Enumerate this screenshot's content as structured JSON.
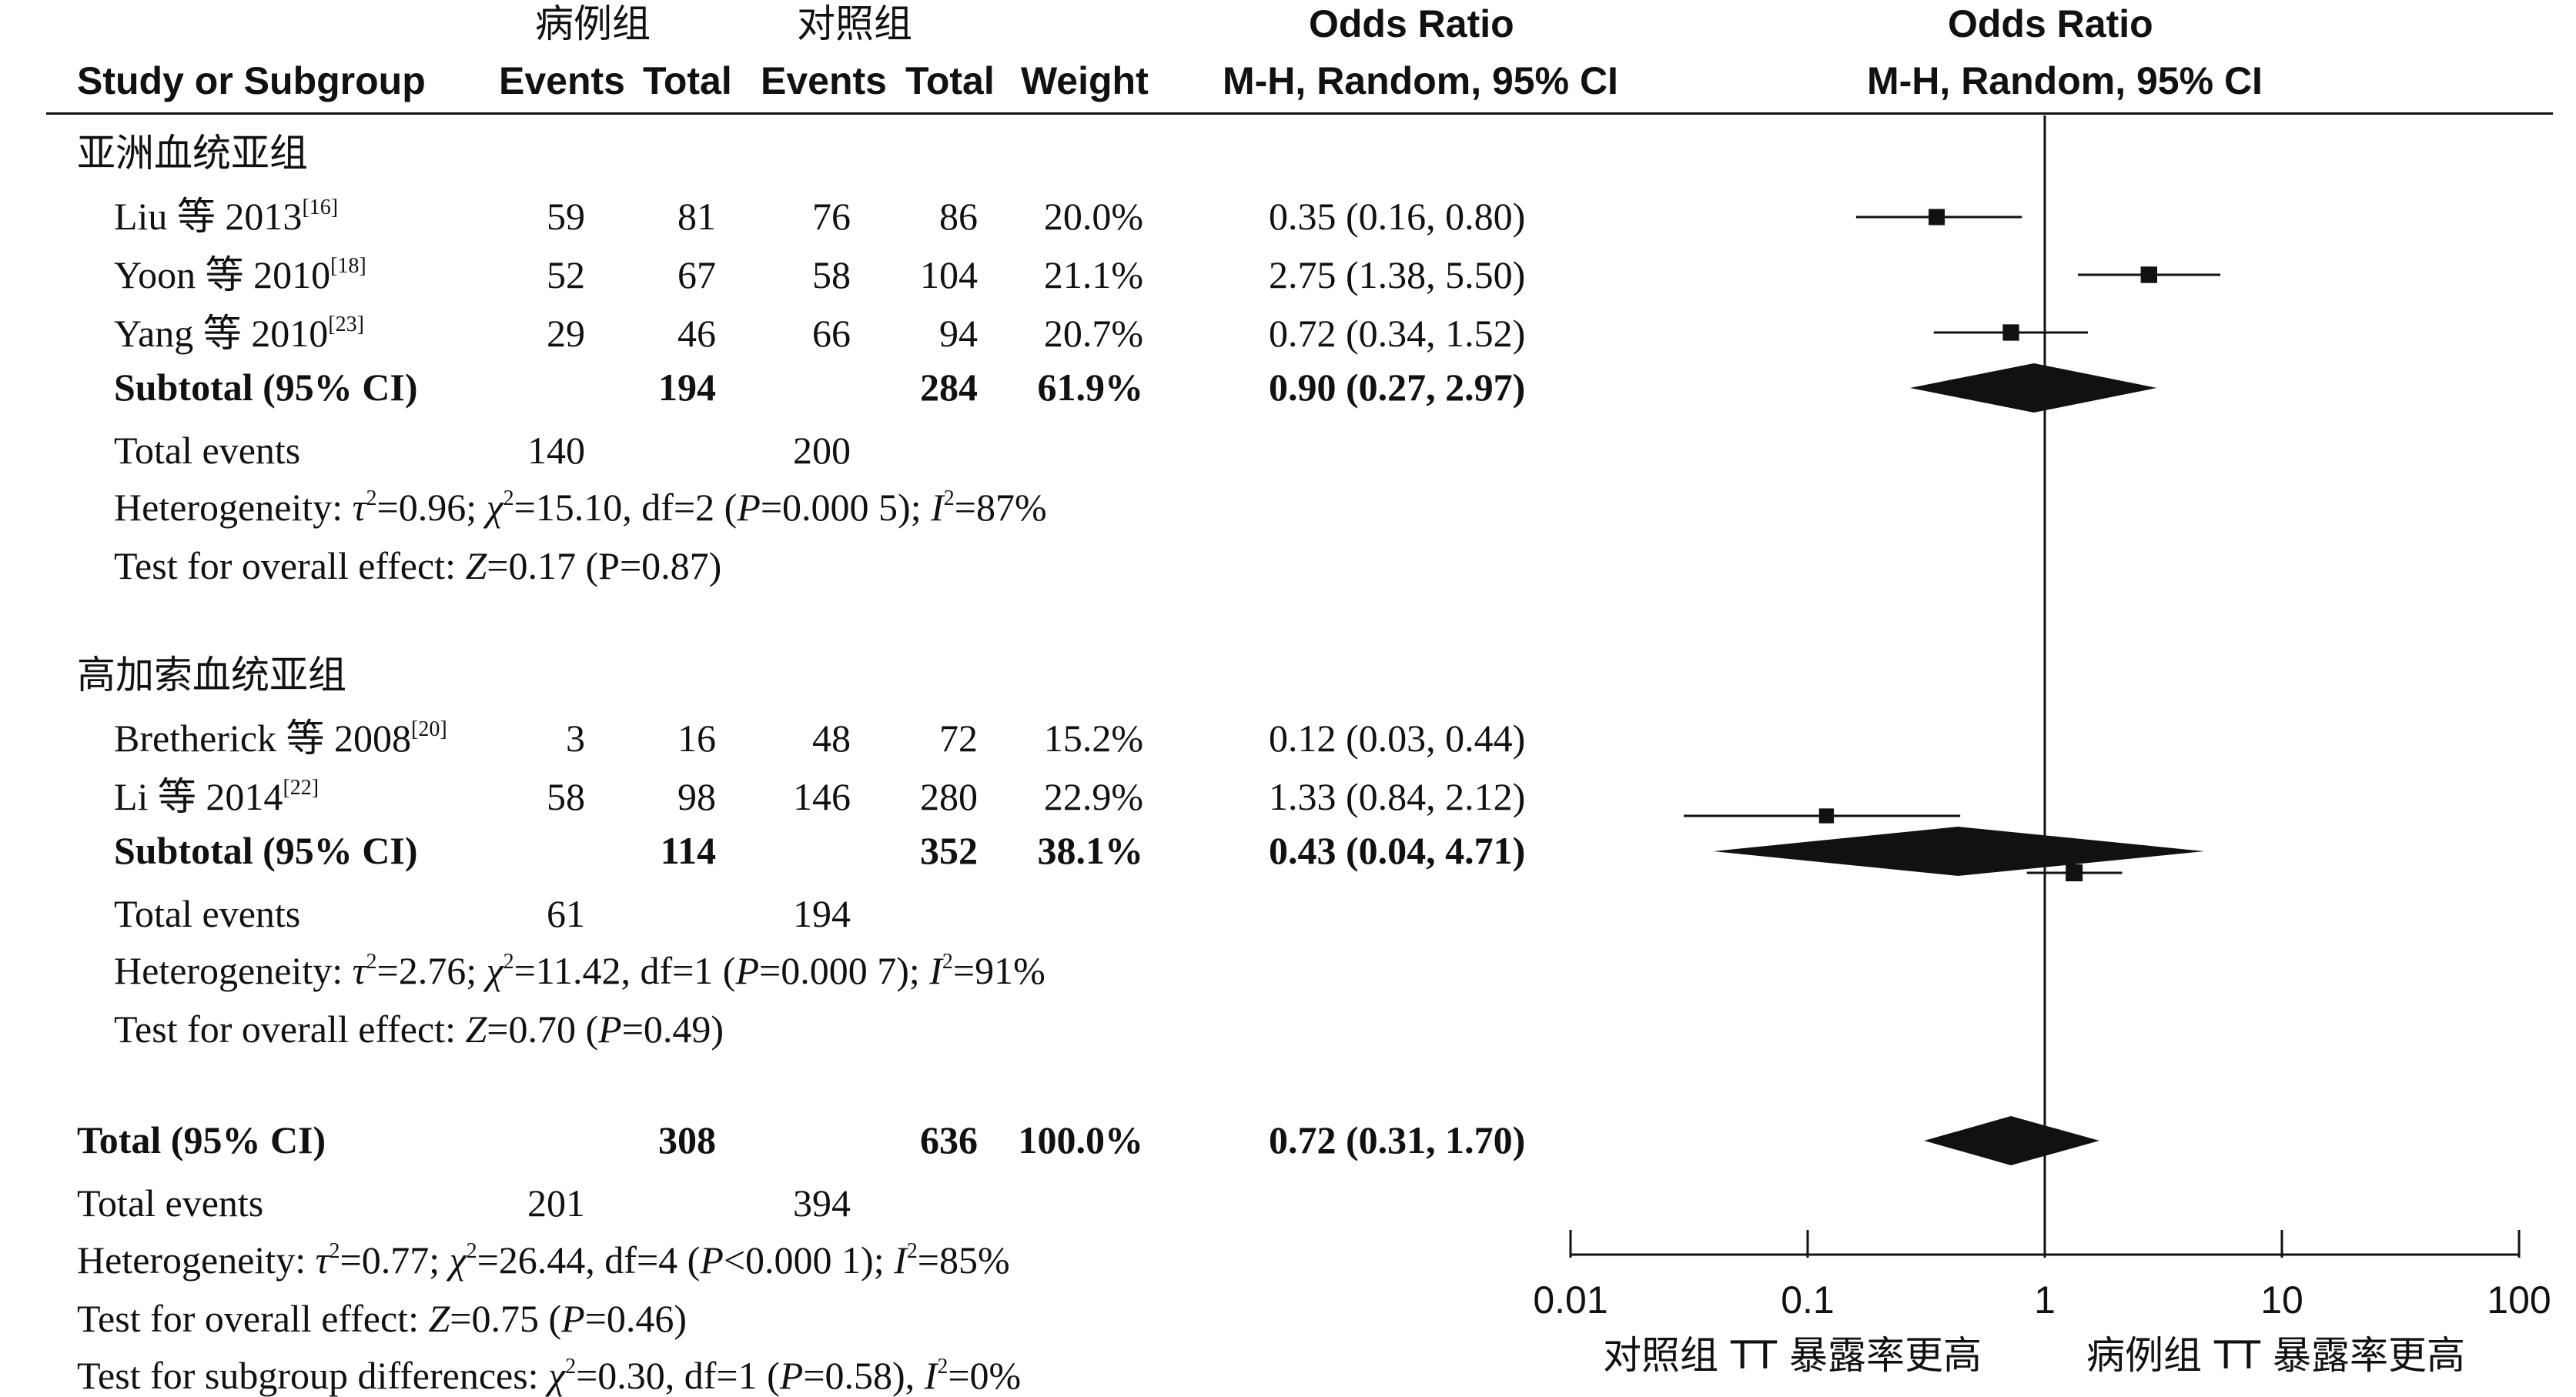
{
  "header": {
    "case_group": "病例组",
    "control_group": "对照组",
    "study_col": "Study or Subgroup",
    "events1": "Events",
    "total1": "Total",
    "events2": "Events",
    "total2": "Total",
    "weight": "Weight",
    "or_title": "Odds Ratio",
    "or_method": "M-H, Random, 95% CI",
    "plot_title": "Odds Ratio",
    "plot_method": "M-H, Random, 95% CI"
  },
  "subgroups": [
    {
      "name": "亚洲血统亚组",
      "studies": [
        {
          "name": "Liu 等 2013",
          "ref": "[16]",
          "e1": "59",
          "t1": "81",
          "e2": "76",
          "t2": "86",
          "weight": "20.0%",
          "ci": "0.35 (0.16, 0.80)"
        },
        {
          "name": "Yoon 等 2010",
          "ref": "[18]",
          "e1": "52",
          "t1": "67",
          "e2": "58",
          "t2": "104",
          "weight": "21.1%",
          "ci": "2.75 (1.38, 5.50)"
        },
        {
          "name": "Yang 等 2010",
          "ref": "[23]",
          "e1": "29",
          "t1": "46",
          "e2": "66",
          "t2": "94",
          "weight": "20.7%",
          "ci": "0.72 (0.34, 1.52)"
        }
      ],
      "subtotal": {
        "label": "Subtotal (95% CI)",
        "t1": "194",
        "t2": "284",
        "weight": "61.9%",
        "ci": "0.90 (0.27, 2.97)"
      },
      "events": {
        "label": "Total events",
        "e1": "140",
        "e2": "200"
      },
      "het": {
        "prefix": "Heterogeneity: ",
        "tau": "τ",
        "tau_val": "=0.96; ",
        "chi": "χ",
        "chi_val": "=15.10, df=2 (",
        "p": "P",
        "p_val": "=0.000 5); ",
        "i": "I",
        "i_val": "=87%"
      },
      "effect": {
        "prefix": "Test for overall effect: ",
        "z": "Z",
        "z_val": "=0.17 (P=0.87)"
      }
    },
    {
      "name": "高加索血统亚组",
      "studies": [
        {
          "name": "Bretherick 等 2008",
          "ref": "[20]",
          "e1": "3",
          "t1": "16",
          "e2": "48",
          "t2": "72",
          "weight": "15.2%",
          "ci": "0.12 (0.03, 0.44)"
        },
        {
          "name": "Li 等 2014",
          "ref": "[22]",
          "e1": "58",
          "t1": "98",
          "e2": "146",
          "t2": "280",
          "weight": "22.9%",
          "ci": "1.33 (0.84, 2.12)"
        }
      ],
      "subtotal": {
        "label": "Subtotal (95% CI)",
        "t1": "114",
        "t2": "352",
        "weight": "38.1%",
        "ci": "0.43 (0.04, 4.71)"
      },
      "events": {
        "label": "Total events",
        "e1": "61",
        "e2": "194"
      },
      "het": {
        "prefix": "Heterogeneity: ",
        "tau": "τ",
        "tau_val": "=2.76; ",
        "chi": "χ",
        "chi_val": "=11.42, df=1 (",
        "p": "P",
        "p_val": "=0.000 7); ",
        "i": "I",
        "i_val": "=91%"
      },
      "effect": {
        "prefix": "Test for overall effect: ",
        "z": "Z",
        "z_val": "=0.70 (",
        "p": "P",
        "p_val": "=0.49)"
      }
    }
  ],
  "total": {
    "label": "Total (95% CI)",
    "t1": "308",
    "t2": "636",
    "weight": "100.0%",
    "ci": "0.72 (0.31, 1.70)"
  },
  "total_events": {
    "label": "Total events",
    "e1": "201",
    "e2": "394"
  },
  "total_het": {
    "prefix": "Heterogeneity: ",
    "tau": "τ",
    "tau_val": "=0.77; ",
    "chi": "χ",
    "chi_val": "=26.44, df=4 (",
    "p": "P",
    "p_val": "<0.000 1); ",
    "i": "I",
    "i_val": "=85%"
  },
  "total_effect": {
    "prefix": "Test for overall effect: ",
    "z": "Z",
    "z_val": "=0.75 (",
    "p": "P",
    "p_val": "=0.46)"
  },
  "subgroup_diff": {
    "prefix": "Test for subgroup differences: ",
    "chi": "χ",
    "chi_val": "=0.30, df=1 (",
    "p": "P",
    "p_val": "=0.58), ",
    "i": "I",
    "i_val": "=0%"
  },
  "axis": {
    "ticks": [
      "0.01",
      "0.1",
      "1",
      "10",
      "100"
    ],
    "left_caption": "对照组 TT 暴露率更高",
    "right_caption": "病例组 TT 暴露率更高"
  },
  "chart_data": {
    "type": "scatter",
    "title": "Odds Ratio",
    "subtitle": "M-H, Random, 95% CI",
    "xscale": "log",
    "xlim": [
      0.01,
      100
    ],
    "reference_line": 1,
    "series": [
      {
        "name": "",
        "points": [
          {
            "label": "Liu 等 2013",
            "or": 0.35,
            "lo": 0.16,
            "hi": 0.8,
            "weight": 20.0
          },
          {
            "label": "Yoon 等 2010",
            "or": 2.75,
            "lo": 1.38,
            "hi": 5.5,
            "weight": 21.1
          },
          {
            "label": "Yang 等 2010",
            "or": 0.72,
            "lo": 0.34,
            "hi": 1.52,
            "weight": 20.7
          },
          {
            "label": "Bretherick 等 2008",
            "or": 0.12,
            "lo": 0.03,
            "hi": 0.44,
            "weight": 15.2
          },
          {
            "label": "Li 等 2014",
            "or": 1.33,
            "lo": 0.84,
            "hi": 2.12,
            "weight": 22.9
          }
        ]
      }
    ],
    "diamonds": [
      {
        "label": "Subtotal (95% CI)",
        "or": 0.9,
        "lo": 0.27,
        "hi": 2.97
      },
      {
        "label": "Subtotal (95% CI)",
        "or": 0.43,
        "lo": 0.04,
        "hi": 4.71
      },
      {
        "label": "Total (95% CI)",
        "or": 0.72,
        "lo": 0.31,
        "hi": 1.7
      }
    ]
  }
}
